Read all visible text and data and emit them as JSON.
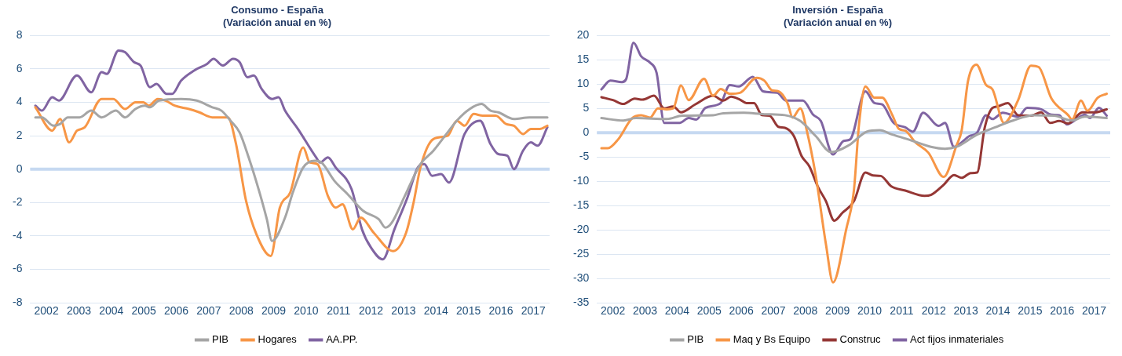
{
  "chart_data": [
    {
      "type": "line",
      "title": "Consumo - España\n(Variación anual en %)",
      "xlim": [
        2002,
        2018
      ],
      "xticks": [
        {
          "value": 2002.5,
          "label": "2002"
        },
        {
          "value": 2003.5,
          "label": "2003"
        },
        {
          "value": 2004.5,
          "label": "2004"
        },
        {
          "value": 2005.5,
          "label": "2005"
        },
        {
          "value": 2006.5,
          "label": "2006"
        },
        {
          "value": 2007.5,
          "label": "2007"
        },
        {
          "value": 2008.5,
          "label": "2008"
        },
        {
          "value": 2009.5,
          "label": "2009"
        },
        {
          "value": 2010.5,
          "label": "2010"
        },
        {
          "value": 2011.5,
          "label": "2011"
        },
        {
          "value": 2012.5,
          "label": "2012"
        },
        {
          "value": 2013.5,
          "label": "2013"
        },
        {
          "value": 2014.5,
          "label": "2014"
        },
        {
          "value": 2015.5,
          "label": "2015"
        },
        {
          "value": 2016.5,
          "label": "2016"
        },
        {
          "value": 2017.5,
          "label": "2017"
        }
      ],
      "ylim": [
        -8,
        8
      ],
      "yticks": [
        -8,
        -6,
        -4,
        -2,
        0,
        2,
        4,
        6,
        8
      ],
      "ref_lines": [
        {
          "axis": "y",
          "value": 0,
          "color": "#c6d9f1"
        }
      ],
      "grid": "y",
      "legend": "bottom",
      "marker": "none",
      "line_style": "solid",
      "series": [
        {
          "name": "PIB",
          "color": "#a5a5a5",
          "x": [
            2002.16,
            2002.36,
            2002.72,
            2002.92,
            2003.16,
            2003.52,
            2003.88,
            2004.2,
            2004.64,
            2004.92,
            2005.24,
            2005.53,
            2005.69,
            2005.97,
            2006.65,
            2007.13,
            2007.61,
            2007.89,
            2008.17,
            2008.45,
            2008.73,
            2009.05,
            2009.29,
            2009.45,
            2009.85,
            2010.09,
            2010.41,
            2010.77,
            2010.97,
            2011.37,
            2011.78,
            2012.26,
            2012.74,
            2012.94,
            2013.14,
            2013.54,
            2014.02,
            2014.42,
            2014.82,
            2015.14,
            2015.54,
            2015.9,
            2016.18,
            2016.42,
            2016.9,
            2017.38,
            2017.93
          ],
          "values": [
            3.1,
            3.1,
            2.6,
            2.7,
            3.1,
            3.1,
            3.5,
            3.1,
            3.5,
            3.1,
            3.6,
            3.8,
            3.7,
            4.1,
            4.2,
            4.1,
            3.7,
            3.5,
            2.9,
            2.2,
            0.7,
            -1.3,
            -3.0,
            -4.3,
            -2.9,
            -1.4,
            0.1,
            0.5,
            0.4,
            -0.7,
            -1.5,
            -2.5,
            -3.0,
            -3.5,
            -3.2,
            -1.6,
            0.3,
            1.1,
            2.1,
            2.9,
            3.6,
            3.9,
            3.5,
            3.4,
            3.0,
            3.1,
            3.1
          ]
        },
        {
          "name": "Hogares",
          "color": "#f79646",
          "x": [
            2002.16,
            2002.68,
            2002.92,
            2003.2,
            2003.44,
            2003.68,
            2004.2,
            2004.56,
            2004.92,
            2005.24,
            2005.49,
            2005.65,
            2005.93,
            2006.17,
            2006.45,
            2006.89,
            2007.21,
            2007.61,
            2008.09,
            2008.33,
            2008.65,
            2008.97,
            2009.41,
            2009.69,
            2010.01,
            2010.41,
            2010.61,
            2010.85,
            2011.17,
            2011.41,
            2011.62,
            2011.94,
            2012.18,
            2012.58,
            2013.18,
            2013.58,
            2013.82,
            2014.02,
            2014.42,
            2014.86,
            2015.14,
            2015.38,
            2015.66,
            2015.94,
            2016.34,
            2016.66,
            2016.9,
            2017.18,
            2017.42,
            2017.7,
            2017.93
          ],
          "values": [
            3.7,
            2.3,
            3.0,
            1.6,
            2.3,
            2.5,
            4.2,
            4.2,
            3.6,
            4.0,
            4.0,
            3.8,
            4.2,
            4.1,
            3.8,
            3.6,
            3.4,
            3.1,
            3.1,
            1.6,
            -1.9,
            -3.9,
            -5.2,
            -2.3,
            -1.4,
            1.3,
            0.4,
            0.3,
            -1.6,
            -2.3,
            -2.1,
            -3.6,
            -2.9,
            -3.8,
            -4.9,
            -3.8,
            -1.9,
            0.1,
            1.8,
            2.0,
            2.9,
            2.6,
            3.3,
            3.2,
            3.2,
            2.7,
            2.6,
            2.1,
            2.4,
            2.4,
            2.6
          ]
        },
        {
          "name": "AA.PP.",
          "color": "#8064a2",
          "x": [
            2002.16,
            2002.36,
            2002.68,
            2002.88,
            2003.44,
            2003.88,
            2004.2,
            2004.36,
            2004.72,
            2004.92,
            2005.2,
            2005.4,
            2005.69,
            2005.89,
            2006.2,
            2006.37,
            2006.65,
            2007.05,
            2007.45,
            2007.65,
            2007.93,
            2008.25,
            2008.45,
            2008.69,
            2008.89,
            2009.13,
            2009.45,
            2009.65,
            2009.85,
            2010.25,
            2010.81,
            2010.93,
            2011.17,
            2011.41,
            2011.9,
            2012.22,
            2012.5,
            2012.86,
            2013.22,
            2013.62,
            2013.94,
            2014.14,
            2014.38,
            2014.66,
            2014.9,
            2015.38,
            2015.86,
            2016.18,
            2016.42,
            2016.7,
            2016.9,
            2017.18,
            2017.42,
            2017.63,
            2017.93
          ],
          "values": [
            3.8,
            3.5,
            4.3,
            4.1,
            5.6,
            4.6,
            5.8,
            5.7,
            7.1,
            7.0,
            6.4,
            6.2,
            4.9,
            5.1,
            4.5,
            4.5,
            5.3,
            5.9,
            6.3,
            6.6,
            6.2,
            6.6,
            6.4,
            5.5,
            5.6,
            4.8,
            4.2,
            4.3,
            3.5,
            2.4,
            0.7,
            0.4,
            0.7,
            0.1,
            -1.2,
            -3.6,
            -4.7,
            -5.4,
            -3.6,
            -1.7,
            0.1,
            0.3,
            -0.4,
            -0.3,
            -0.8,
            2.1,
            2.9,
            1.5,
            0.9,
            0.8,
            0,
            1.1,
            1.6,
            1.4,
            2.5
          ]
        }
      ]
    },
    {
      "type": "line",
      "title": "Inversión - España\n(Variación anual en %)",
      "xlim": [
        2002,
        2018
      ],
      "xticks": [
        {
          "value": 2002.5,
          "label": "2002"
        },
        {
          "value": 2003.5,
          "label": "2003"
        },
        {
          "value": 2004.5,
          "label": "2004"
        },
        {
          "value": 2005.5,
          "label": "2005"
        },
        {
          "value": 2006.5,
          "label": "2006"
        },
        {
          "value": 2007.5,
          "label": "2007"
        },
        {
          "value": 2008.5,
          "label": "2008"
        },
        {
          "value": 2009.5,
          "label": "2009"
        },
        {
          "value": 2010.5,
          "label": "2010"
        },
        {
          "value": 2011.5,
          "label": "2011"
        },
        {
          "value": 2012.5,
          "label": "2012"
        },
        {
          "value": 2013.5,
          "label": "2013"
        },
        {
          "value": 2014.5,
          "label": "2014"
        },
        {
          "value": 2015.5,
          "label": "2015"
        },
        {
          "value": 2016.5,
          "label": "2016"
        },
        {
          "value": 2017.5,
          "label": "2017"
        }
      ],
      "ylim": [
        -35,
        20
      ],
      "yticks": [
        -35,
        -30,
        -25,
        -20,
        -15,
        -10,
        -5,
        0,
        5,
        10,
        15,
        20
      ],
      "ref_lines": [
        {
          "axis": "y",
          "value": 0,
          "color": "#c6d9f1"
        }
      ],
      "grid": "y",
      "legend": "bottom",
      "marker": "none",
      "line_style": "solid",
      "series": [
        {
          "name": "PIB",
          "color": "#a5a5a5",
          "x": [
            2002.14,
            2002.82,
            2003.22,
            2004.18,
            2004.66,
            2005.62,
            2005.94,
            2006.58,
            2007.22,
            2007.86,
            2008.34,
            2008.82,
            2009.3,
            2009.85,
            2010.41,
            2010.81,
            2011.21,
            2011.85,
            2012.41,
            2012.85,
            2013.21,
            2013.85,
            2014.41,
            2014.97,
            2015.61,
            2016.25,
            2016.81,
            2017.21,
            2017.89
          ],
          "values": [
            3,
            2.5,
            3,
            2.8,
            3.5,
            3.6,
            4,
            4.1,
            3.8,
            3.6,
            2.4,
            -0.7,
            -4,
            -2.6,
            0.2,
            0.5,
            -0.4,
            -1.7,
            -2.9,
            -3.3,
            -2.9,
            -0.4,
            1.1,
            2.5,
            3.6,
            3.5,
            2.5,
            3.3,
            3
          ]
        },
        {
          "name": "Maq y Bs Equipo",
          "color": "#f79646",
          "x": [
            2002.14,
            2002.34,
            2002.66,
            2003.1,
            2003.38,
            2003.66,
            2003.9,
            2004.18,
            2004.38,
            2004.62,
            2004.86,
            2005.34,
            2005.62,
            2005.86,
            2006.14,
            2006.46,
            2006.98,
            2007.22,
            2007.46,
            2007.66,
            2007.94,
            2008.1,
            2008.34,
            2008.54,
            2008.82,
            2009.14,
            2009.36,
            2009.77,
            2010.01,
            2010.17,
            2010.37,
            2010.65,
            2010.89,
            2011.21,
            2011.41,
            2011.61,
            2011.93,
            2012.33,
            2012.81,
            2013.21,
            2013.37,
            2013.57,
            2013.83,
            2014.13,
            2014.33,
            2014.69,
            2015.13,
            2015.53,
            2015.77,
            2016.17,
            2016.69,
            2016.81,
            2017.09,
            2017.29,
            2017.61,
            2017.89
          ],
          "values": [
            -3.2,
            -3.2,
            -1.4,
            3,
            3.6,
            3.1,
            5,
            4.8,
            5,
            9.7,
            6.7,
            11.1,
            7.6,
            9,
            8,
            8.2,
            11.3,
            10.7,
            8.7,
            8.5,
            6.1,
            3.1,
            5,
            0.5,
            -8.8,
            -23,
            -30.8,
            -19.9,
            -11.9,
            1.7,
            9.5,
            7.2,
            7.2,
            3.6,
            0.8,
            0.4,
            -2,
            -4.1,
            -9.1,
            -2.6,
            0.5,
            10.7,
            14,
            9.8,
            8.9,
            2,
            6.7,
            13.8,
            13.5,
            7,
            3.6,
            2.7,
            6.6,
            4.5,
            7.2,
            8
          ]
        },
        {
          "name": "Construc",
          "color": "#953735",
          "x": [
            2002.14,
            2002.5,
            2002.82,
            2003.18,
            2003.42,
            2003.78,
            2004.1,
            2004.38,
            2004.62,
            2005.06,
            2005.62,
            2005.94,
            2006.18,
            2006.46,
            2006.66,
            2006.9,
            2007.14,
            2007.38,
            2007.66,
            2007.86,
            2008.14,
            2008.38,
            2008.62,
            2008.9,
            2009.14,
            2009.4,
            2009.65,
            2010.01,
            2010.37,
            2010.61,
            2010.85,
            2011.17,
            2011.61,
            2012.21,
            2012.41,
            2012.81,
            2013.13,
            2013.37,
            2013.65,
            2013.85,
            2014.09,
            2014.33,
            2014.49,
            2014.81,
            2015.13,
            2015.53,
            2015.85,
            2016.13,
            2016.41,
            2016.69,
            2017.13,
            2017.53,
            2017.89
          ],
          "values": [
            7.3,
            6.7,
            5.9,
            7,
            6.8,
            7.6,
            5,
            5.4,
            4.2,
            5.8,
            7.6,
            6.6,
            7.4,
            6.8,
            6.1,
            6.1,
            3.6,
            3.5,
            1.2,
            1,
            -0.7,
            -4.8,
            -6.9,
            -11.3,
            -14.1,
            -18.1,
            -16.5,
            -14.1,
            -8.2,
            -8.8,
            -8.9,
            -11,
            -11.9,
            -13,
            -12.8,
            -10.7,
            -8.7,
            -9.3,
            -8.3,
            -8.2,
            1.1,
            5.1,
            5.4,
            6.1,
            3.6,
            3.5,
            4.2,
            2,
            2.4,
            1.9,
            4.2,
            4.2,
            4.8
          ]
        },
        {
          "name": "Act fijos inmateriales",
          "color": "#8064a2",
          "x": [
            2002.14,
            2002.42,
            2002.78,
            2002.91,
            2003.14,
            2003.38,
            2003.66,
            2003.86,
            2004.1,
            2004.58,
            2004.86,
            2005.1,
            2005.38,
            2005.86,
            2006.14,
            2006.42,
            2006.86,
            2007.18,
            2007.62,
            2007.9,
            2008.42,
            2008.74,
            2008.98,
            2009.36,
            2009.69,
            2009.89,
            2010.37,
            2010.65,
            2010.89,
            2011.25,
            2011.61,
            2011.85,
            2012.17,
            2012.65,
            2012.85,
            2013.13,
            2013.61,
            2013.85,
            2014.13,
            2014.33,
            2014.65,
            2015.13,
            2015.41,
            2015.85,
            2016.17,
            2016.41,
            2016.65,
            2017.21,
            2017.37,
            2017.65,
            2017.89
          ],
          "values": [
            8.9,
            10.7,
            10.4,
            11,
            18.5,
            15.7,
            14.4,
            12.3,
            2,
            2,
            3,
            2.7,
            5.1,
            6.1,
            9.8,
            9.5,
            11.5,
            8.5,
            8.2,
            6.6,
            6.6,
            3.7,
            2.4,
            -4.5,
            -1.7,
            -1.4,
            8.5,
            6.1,
            5.8,
            2,
            1.1,
            0.2,
            4.1,
            1.4,
            2,
            -2.9,
            -0.7,
            0,
            3.6,
            2.8,
            4.1,
            3.3,
            5.1,
            4.8,
            3.7,
            3.6,
            1.7,
            3.7,
            3,
            5.1,
            3.5
          ]
        }
      ]
    }
  ]
}
